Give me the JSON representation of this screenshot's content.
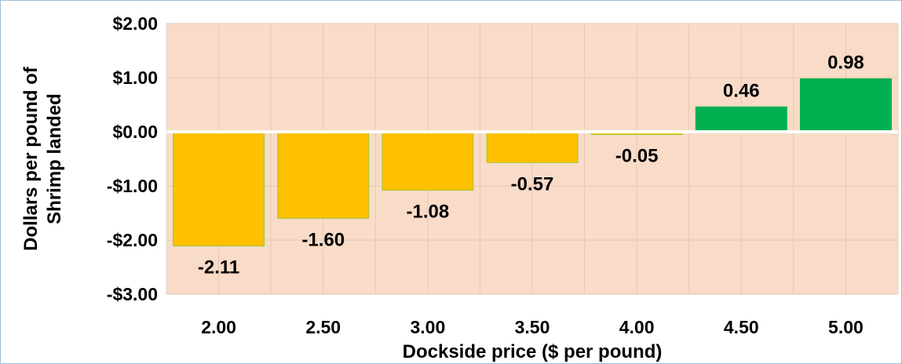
{
  "chart_data": {
    "type": "bar",
    "categories": [
      "2.00",
      "2.50",
      "3.00",
      "3.50",
      "4.00",
      "4.50",
      "5.00"
    ],
    "values": [
      -2.11,
      -1.6,
      -1.08,
      -0.57,
      -0.05,
      0.46,
      0.98
    ],
    "data_labels": [
      "-2.11",
      "-1.60",
      "-1.08",
      "-0.57",
      "-0.05",
      "0.46",
      "0.98"
    ],
    "xlabel": "Dockside price ($ per pound)",
    "ylabel_lines": [
      "Dollars per pound of",
      "Shrimp landed"
    ],
    "ylim": [
      -3,
      2
    ],
    "yticks": [
      2,
      1,
      0,
      -1,
      -2,
      -3
    ],
    "ytick_labels": [
      "$2.00",
      "$1.00",
      "$0.00",
      "-$1.00",
      "-$2.00",
      "-$3.00"
    ],
    "grid": true,
    "legend": "none",
    "colors": {
      "negative": "#ffc000",
      "positive": "#00b050",
      "plot_background": "#f8dcc8",
      "gridline": "#e6c9b5"
    }
  }
}
